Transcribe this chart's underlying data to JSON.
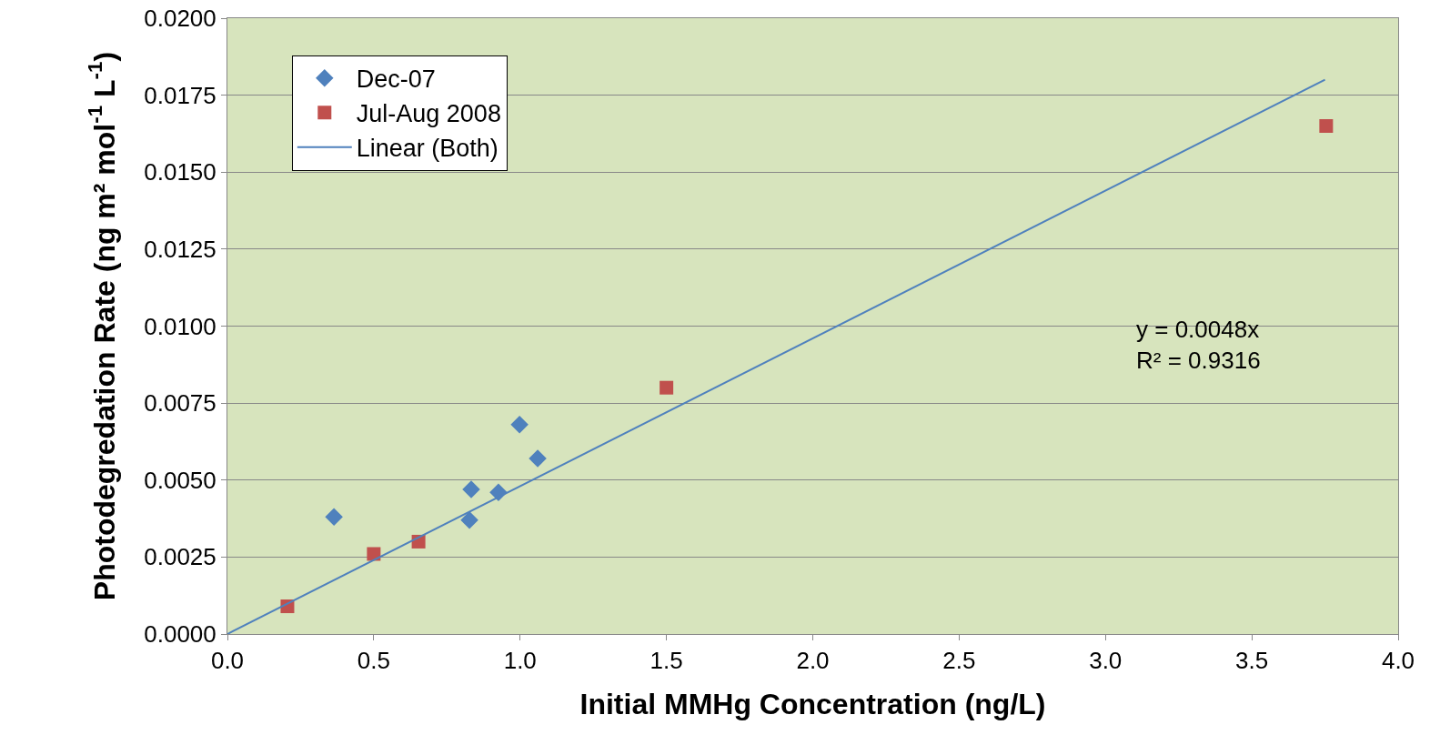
{
  "chart_data": {
    "type": "scatter",
    "xlabel": "Initial MMHg Concentration (ng/L)",
    "ylabel": "Photodegredation Rate (ng m² mol$^{-1}$ L$^{-1}$)",
    "series": [
      {
        "name": "Dec-07",
        "color": "#4f81bd",
        "marker": "diamond",
        "x": [
          0.364,
          0.833,
          0.827,
          0.926,
          0.998,
          1.06
        ],
        "values": [
          0.0038,
          0.0047,
          0.0037,
          0.0046,
          0.0068,
          0.0057
        ]
      },
      {
        "name": "Jul-Aug 2008",
        "color": "#c0504d",
        "marker": "square",
        "x": [
          0.205,
          0.5,
          0.653,
          1.5,
          3.754
        ],
        "values": [
          0.0009,
          0.0026,
          0.003,
          0.008,
          0.0165
        ]
      },
      {
        "name": "Linear (Both)",
        "type": "line",
        "color": "#4f81bd",
        "marker": "none",
        "line_style": "solid",
        "x": [
          0,
          3.75
        ],
        "values": [
          0,
          0.018
        ]
      }
    ],
    "xlim": [
      0,
      4
    ],
    "xticks": [
      {
        "value": 0,
        "label": "0.0"
      },
      {
        "value": 0.5,
        "label": "0.5"
      },
      {
        "value": 1,
        "label": "1.0"
      },
      {
        "value": 1.5,
        "label": "1.5"
      },
      {
        "value": 2,
        "label": "2.0"
      },
      {
        "value": 2.5,
        "label": "2.5"
      },
      {
        "value": 3,
        "label": "3.0"
      },
      {
        "value": 3.5,
        "label": "3.5"
      },
      {
        "value": 4,
        "label": "4.0"
      }
    ],
    "ylim": [
      0,
      0.02
    ],
    "yticks": [
      {
        "value": 0,
        "label": "0.0000"
      },
      {
        "value": 0.0025,
        "label": "0.0025"
      },
      {
        "value": 0.005,
        "label": "0.0050"
      },
      {
        "value": 0.0075,
        "label": "0.0075"
      },
      {
        "value": 0.01,
        "label": "0.0100"
      },
      {
        "value": 0.0125,
        "label": "0.0125"
      },
      {
        "value": 0.015,
        "label": "0.0150"
      },
      {
        "value": 0.0175,
        "label": "0.0175"
      },
      {
        "value": 0.02,
        "label": "0.0200"
      }
    ],
    "annotations": [
      "y = 0.0048x\nR² = 0.9316"
    ],
    "grid": "y",
    "legend": "top left"
  }
}
